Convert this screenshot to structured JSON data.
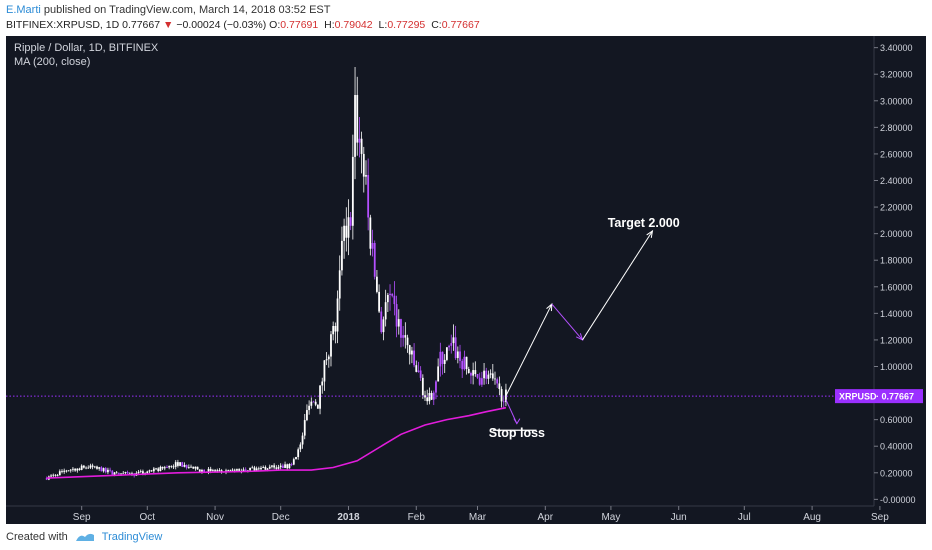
{
  "header": {
    "author": "E.Marti",
    "published": "published on TradingView.com, March 14, 2018 03:52 EST",
    "symbol": "BITFINEX:XRPUSD, 1D",
    "last": "0.77667",
    "change": "−0.00024 (−0.03%)",
    "o_label": "O:",
    "o": "0.77691",
    "h_label": "H:",
    "h": "0.79042",
    "l_label": "L:",
    "l": "0.77295",
    "c_label": "C:",
    "c": "0.77667"
  },
  "footer": {
    "created_with": "Created with",
    "brand": "TradingView"
  },
  "colors": {
    "background": "#131722",
    "candle": "#ffffff",
    "highlight": "#b450ff",
    "ma": "#e21cdc",
    "price_line": "#9b30ff",
    "annotation": "#ffffff"
  },
  "chart_data": {
    "type": "line",
    "title": "Ripple / Dollar, 1D, BITFINEX",
    "indicator": "MA (200, close)",
    "x_ticks": [
      "Sep",
      "Oct",
      "Nov",
      "Dec",
      "2018",
      "Feb",
      "Mar",
      "Apr",
      "May",
      "Jun",
      "Jul",
      "Aug",
      "Sep"
    ],
    "y_ticks": [
      "3.40000",
      "3.20000",
      "3.00000",
      "2.80000",
      "2.60000",
      "2.40000",
      "2.20000",
      "2.00000",
      "1.80000",
      "1.60000",
      "1.40000",
      "1.20000",
      "1.00000",
      "0.80000",
      "0.60000",
      "0.40000",
      "0.20000",
      "-0.00000"
    ],
    "ylim": [
      -0.05,
      3.45
    ],
    "grid": false,
    "price_tag": {
      "label": "XRPUSD",
      "value": "0.77667",
      "y": 0.777
    },
    "series": [
      {
        "name": "XRPUSD",
        "style": "candles",
        "x": [
          "2017-08-16",
          "2017-08-25",
          "2017-09-05",
          "2017-09-15",
          "2017-09-25",
          "2017-10-05",
          "2017-10-15",
          "2017-10-25",
          "2017-11-05",
          "2017-11-15",
          "2017-11-25",
          "2017-12-05",
          "2017-12-10",
          "2017-12-14",
          "2017-12-18",
          "2017-12-22",
          "2017-12-26",
          "2017-12-30",
          "2018-01-02",
          "2018-01-04",
          "2018-01-06",
          "2018-01-08",
          "2018-01-10",
          "2018-01-13",
          "2018-01-16",
          "2018-01-19",
          "2018-01-22",
          "2018-01-25",
          "2018-01-28",
          "2018-01-31",
          "2018-02-03",
          "2018-02-06",
          "2018-02-09",
          "2018-02-12",
          "2018-02-15",
          "2018-02-18",
          "2018-02-21",
          "2018-02-24",
          "2018-02-27",
          "2018-03-02",
          "2018-03-05",
          "2018-03-08",
          "2018-03-11",
          "2018-03-14"
        ],
        "y": [
          0.16,
          0.22,
          0.25,
          0.2,
          0.19,
          0.22,
          0.27,
          0.22,
          0.21,
          0.22,
          0.24,
          0.25,
          0.4,
          0.75,
          0.72,
          1.1,
          1.3,
          2.0,
          2.2,
          2.9,
          2.7,
          2.5,
          2.1,
          1.7,
          1.3,
          1.5,
          1.4,
          1.25,
          1.15,
          1.0,
          0.9,
          0.7,
          0.85,
          1.05,
          1.1,
          1.15,
          1.05,
          0.98,
          0.92,
          0.92,
          0.95,
          0.88,
          0.8,
          0.777
        ]
      },
      {
        "name": "MA (200, close)",
        "x": [
          "2017-08-16",
          "2017-09-15",
          "2017-10-15",
          "2017-11-15",
          "2017-12-01",
          "2017-12-15",
          "2017-12-25",
          "2018-01-05",
          "2018-01-15",
          "2018-01-25",
          "2018-02-05",
          "2018-02-15",
          "2018-02-25",
          "2018-03-05",
          "2018-03-14"
        ],
        "y": [
          0.16,
          0.18,
          0.2,
          0.21,
          0.22,
          0.22,
          0.24,
          0.29,
          0.39,
          0.49,
          0.56,
          0.6,
          0.63,
          0.66,
          0.69
        ]
      }
    ],
    "annotations": [
      {
        "text": "Target 2.000",
        "x": "2018-05-16",
        "y": 2.05
      },
      {
        "text": "Stop loss",
        "x": "2018-03-19",
        "y": 0.47
      }
    ],
    "projection": {
      "x": [
        "2018-03-14",
        "2018-04-04",
        "2018-04-18",
        "2018-05-20"
      ],
      "y": [
        0.78,
        1.47,
        1.2,
        2.02
      ]
    },
    "stop_arrow": {
      "x": [
        "2018-03-14",
        "2018-03-19"
      ],
      "y": [
        0.75,
        0.57
      ]
    },
    "stop_line": {
      "x": [
        "2018-03-08",
        "2018-03-28"
      ],
      "y": [
        0.52,
        0.52
      ]
    }
  }
}
